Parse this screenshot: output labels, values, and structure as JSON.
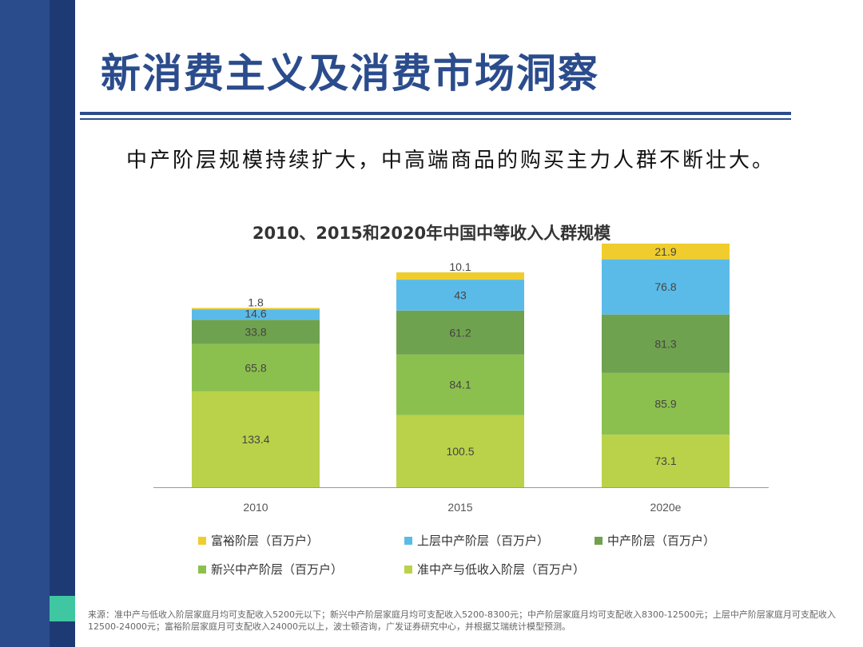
{
  "slide": {
    "title": "新消费主义及消费市场洞察",
    "subtitle": "中产阶层规模持续扩大，中高端商品的购买主力人群不断壮大。",
    "source": "来源：准中产与低收入阶层家庭月均可支配收入5200元以下；新兴中产阶层家庭月均可支配收入5200-8300元；中产阶层家庭月均可支配收入8300-12500元；上层中产阶层家庭月可支配收入12500-24000元；富裕阶层家庭月可支配收入24000元以上，波士顿咨询，广发证券研究中心，并根据艾瑞统计模型预测。"
  },
  "colors": {
    "brand": "#2b4c8c",
    "accent": "#3ec7a0"
  },
  "chart_data": {
    "type": "bar",
    "stacked": true,
    "title": "2010、2015和2020年中国中等收入人群规模",
    "categories": [
      "2010",
      "2015",
      "2020e"
    ],
    "series": [
      {
        "name": "准中产与低收入阶层（百万户）",
        "color": "#b9d24a",
        "values": [
          133.4,
          100.5,
          73.1
        ]
      },
      {
        "name": "新兴中产阶层（百万户）",
        "color": "#8cc04e",
        "values": [
          65.8,
          84.1,
          85.9
        ]
      },
      {
        "name": "中产阶层（百万户）",
        "color": "#6fa24e",
        "values": [
          33.8,
          61.2,
          81.3
        ]
      },
      {
        "name": "上层中产阶层（百万户）",
        "color": "#5bbbe8",
        "values": [
          14.6,
          43,
          76.8
        ]
      },
      {
        "name": "富裕阶层（百万户）",
        "color": "#f0cd2c",
        "values": [
          1.8,
          10.1,
          21.9
        ]
      }
    ],
    "legend_order": [
      4,
      3,
      2,
      1,
      0
    ],
    "legend_position": "bottom",
    "grid": false
  }
}
